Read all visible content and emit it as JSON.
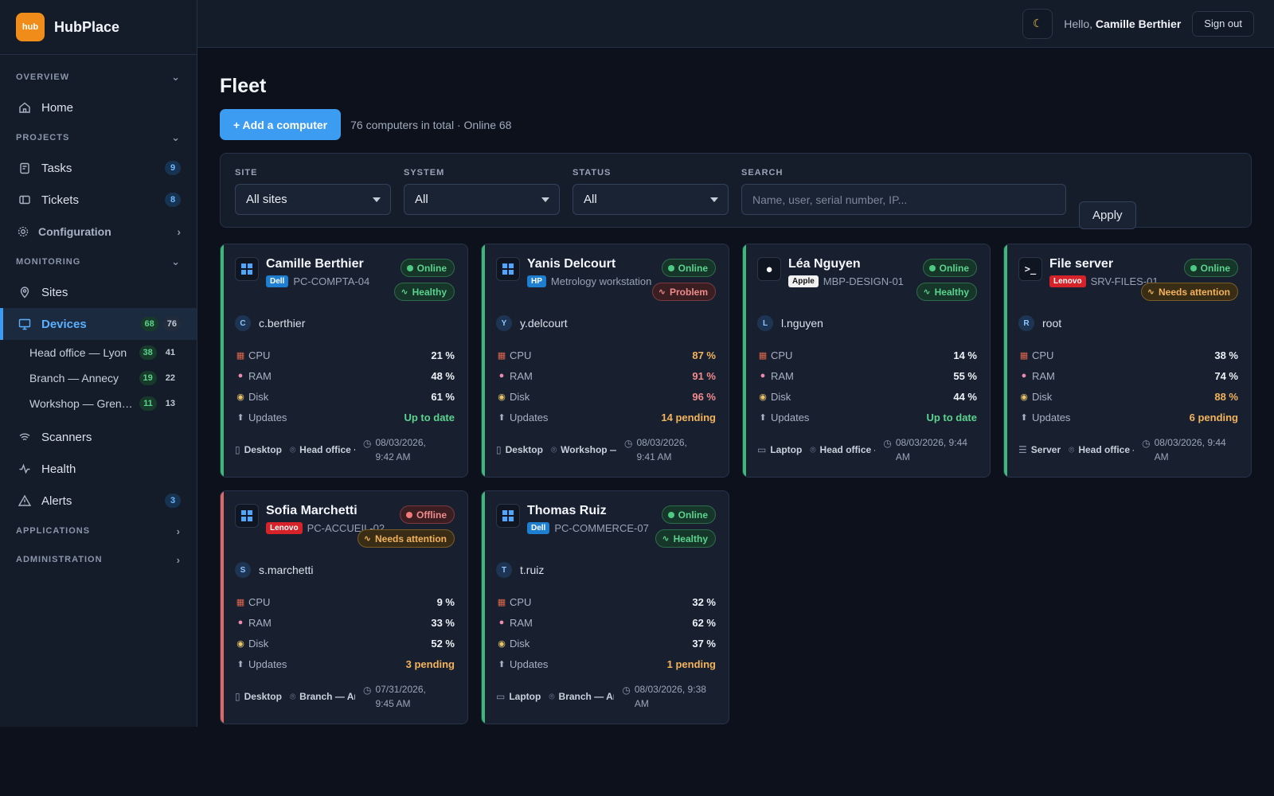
{
  "brand": {
    "logo_text": "hub",
    "name": "HubPlace",
    "accent": "#f08c1a"
  },
  "sidebar": {
    "overview_label": "OVERVIEW",
    "home": "Home",
    "projects_label": "PROJECTS",
    "tasks": {
      "label": "Tasks",
      "count": "9"
    },
    "tickets": {
      "label": "Tickets",
      "count": "8"
    },
    "configuration": "Configuration",
    "monitoring_label": "MONITORING",
    "sites": "Sites",
    "devices": {
      "label": "Devices",
      "online": "68",
      "total": "76"
    },
    "sub_sites": [
      {
        "label": "Head office — Lyon",
        "online": "38",
        "total": "41"
      },
      {
        "label": "Branch — Annecy",
        "online": "19",
        "total": "22"
      },
      {
        "label": "Workshop — Grenoble",
        "online": "11",
        "total": "13"
      }
    ],
    "scanners": "Scanners",
    "health": "Health",
    "alerts": {
      "label": "Alerts",
      "count": "3"
    },
    "applications_label": "APPLICATIONS",
    "administration_label": "ADMINISTRATION"
  },
  "topbar": {
    "theme_icon": "moon-icon",
    "hello_prefix": "Hello,",
    "user": "Camille Berthier",
    "signout": "Sign out"
  },
  "page": {
    "title": "Fleet",
    "add_button": "+ Add a computer",
    "total_text": "76 computers in total · Online 68"
  },
  "filters": {
    "site": {
      "label": "SITE",
      "value": "All sites"
    },
    "system": {
      "label": "SYSTEM",
      "value": "All"
    },
    "status": {
      "label": "STATUS",
      "value": "All"
    },
    "search": {
      "label": "SEARCH",
      "placeholder": "Name, user, serial number, IP..."
    },
    "apply": "Apply"
  },
  "labels": {
    "cpu": "CPU",
    "ram": "RAM",
    "disk": "Disk",
    "updates": "Updates"
  },
  "devices": [
    {
      "name": "Camille Berthier",
      "brand": "Dell",
      "model": "PC-COMPTA-04",
      "status": "Online",
      "health": "Healthy",
      "initial": "C",
      "user": "c.berthier",
      "cpu": "21 %",
      "ram": "48 %",
      "disk": "61 %",
      "updates": "Up to date",
      "type": "Desktop",
      "site": "Head office · Lyon",
      "date": "08/03/2026, 9:42 AM"
    },
    {
      "name": "Yanis Delcourt",
      "brand": "HP",
      "model": "Metrology workstation",
      "status": "Online",
      "health": "Problem",
      "initial": "Y",
      "user": "y.delcourt",
      "cpu": "87 %",
      "ram": "91 %",
      "disk": "96 %",
      "updates": "14 pending",
      "type": "Desktop",
      "site": "Workshop — Grenoble",
      "date": "08/03/2026, 9:41 AM"
    },
    {
      "name": "Léa Nguyen",
      "brand": "Apple",
      "model": "MBP-DESIGN-01",
      "status": "Online",
      "health": "Healthy",
      "initial": "L",
      "user": "l.nguyen",
      "cpu": "14 %",
      "ram": "55 %",
      "disk": "44 %",
      "updates": "Up to date",
      "type": "Laptop",
      "site": "Head office – Lyon",
      "date": "08/03/2026, 9:44 AM"
    },
    {
      "name": "File server",
      "brand": "Lenovo",
      "model": "SRV-FILES-01",
      "status": "Online",
      "health": "Needs attention",
      "initial": "R",
      "user": "root",
      "cpu": "38 %",
      "ram": "74 %",
      "disk": "88 %",
      "updates": "6 pending",
      "type": "Server",
      "site": "Head office – Lyon",
      "date": "08/03/2026, 9:44 AM"
    },
    {
      "name": "Sofia Marchetti",
      "brand": "Lenovo",
      "model": "PC-ACCUEIL-02",
      "status": "Offline",
      "health": "Needs attention",
      "initial": "S",
      "user": "s.marchetti",
      "cpu": "9 %",
      "ram": "33 %",
      "disk": "52 %",
      "updates": "3 pending",
      "type": "Desktop",
      "site": "Branch — Annecy",
      "date": "07/31/2026, 9:45 AM"
    },
    {
      "name": "Thomas Ruiz",
      "brand": "Dell",
      "model": "PC-COMMERCE-07",
      "status": "Online",
      "health": "Healthy",
      "initial": "T",
      "user": "t.ruiz",
      "cpu": "32 %",
      "ram": "62 %",
      "disk": "37 %",
      "updates": "1 pending",
      "type": "Laptop",
      "site": "Branch — Annecy",
      "date": "08/03/2026, 9:38 AM"
    }
  ]
}
